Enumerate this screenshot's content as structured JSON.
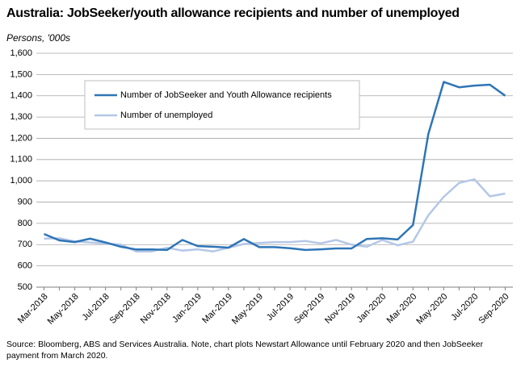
{
  "chart_data": {
    "type": "line",
    "title": "Australia: JobSeeker/youth allowance recipients and number of unemployed",
    "subtitle": "Persons, '000s",
    "note": "Source: Bloomberg, ABS and Services Australia.  Note, chart plots Newstart Allowance until February 2020 and then JobSeeker payment from March 2020.",
    "categories": [
      "Mar-2018",
      null,
      "May-2018",
      null,
      "Jul-2018",
      null,
      "Sep-2018",
      null,
      "Nov-2018",
      null,
      "Jan-2019",
      null,
      "Mar-2019",
      null,
      "May-2019",
      null,
      "Jul-2019",
      null,
      "Sep-2019",
      null,
      "Nov-2019",
      null,
      "Jan-2020",
      null,
      "Mar-2020",
      null,
      "May-2020",
      null,
      "Jul-2020",
      null,
      "Sep-2020"
    ],
    "series": [
      {
        "name": "Number of JobSeeker and Youth Allowance recipients",
        "color": "#2e75b6",
        "values": [
          750,
          720,
          712,
          728,
          710,
          690,
          677,
          677,
          675,
          722,
          693,
          690,
          686,
          726,
          688,
          688,
          683,
          675,
          678,
          682,
          682,
          727,
          730,
          724,
          792,
          1220,
          1465,
          1440,
          1448,
          1452,
          1400
        ]
      },
      {
        "name": "Number of unemployed",
        "color": "#b4c7e7",
        "values": [
          728,
          730,
          715,
          710,
          705,
          700,
          668,
          668,
          685,
          672,
          678,
          668,
          685,
          703,
          708,
          712,
          712,
          717,
          706,
          722,
          700,
          690,
          722,
          697,
          714,
          838,
          925,
          990,
          1007,
          927,
          940
        ]
      }
    ],
    "ylim": [
      500,
      1600
    ],
    "yticks": [
      500,
      600,
      700,
      800,
      900,
      {
        "value": 1000,
        "label": "1,000"
      },
      {
        "value": 1100,
        "label": "1,100"
      },
      {
        "value": 1200,
        "label": "1,200"
      },
      {
        "value": 1300,
        "label": "1,300"
      },
      {
        "value": 1400,
        "label": "1,400"
      },
      {
        "value": 1500,
        "label": "1,500"
      },
      {
        "value": 1600,
        "label": "1,600"
      }
    ],
    "grid": true,
    "legend": "upper left"
  }
}
